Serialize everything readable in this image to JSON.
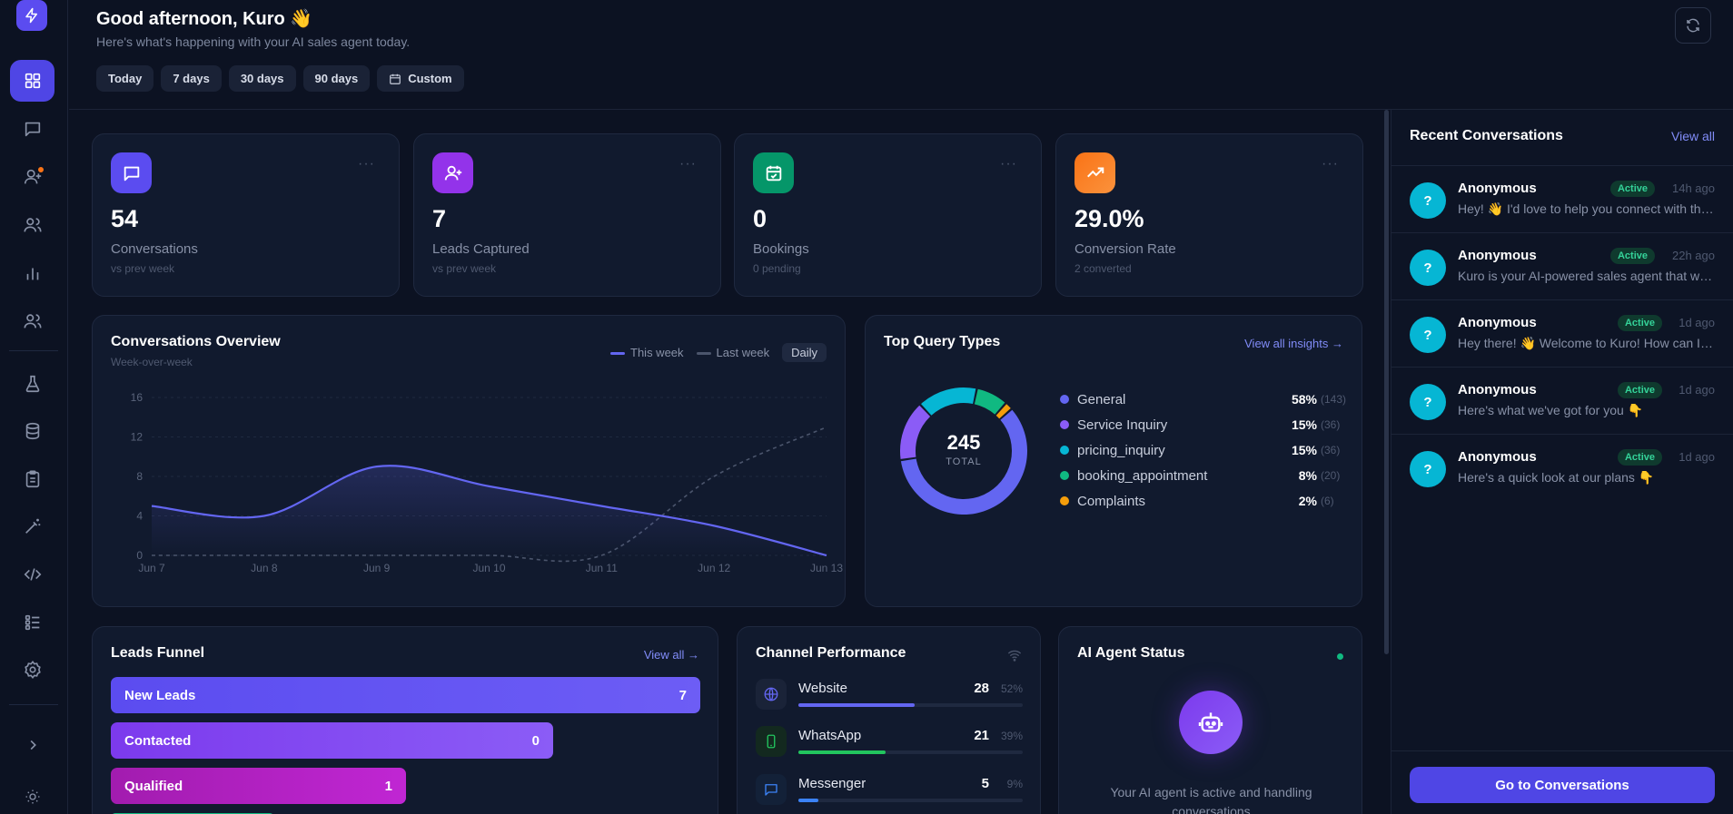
{
  "header": {
    "greeting": "Good afternoon, Kuro",
    "wave": "👋",
    "subtitle": "Here's what's happening with your AI sales agent today.",
    "ranges": [
      "Today",
      "7 days",
      "30 days",
      "90 days",
      "Custom"
    ]
  },
  "sidebar": {
    "items": [
      "dashboard",
      "conversations",
      "add-user",
      "team",
      "analytics",
      "contacts",
      "lab",
      "database",
      "clipboard",
      "magic",
      "code",
      "list",
      "settings",
      "expand",
      "theme"
    ]
  },
  "stats": [
    {
      "value": "54",
      "label": "Conversations",
      "sub": "vs prev week",
      "icon": "message-icon",
      "color": "#5b4cf0"
    },
    {
      "value": "7",
      "label": "Leads Captured",
      "sub": "vs prev week",
      "icon": "user-plus-icon",
      "color": "#9333ea"
    },
    {
      "value": "0",
      "label": "Bookings",
      "sub": "0 pending",
      "icon": "calendar-check-icon",
      "color": "#059669"
    },
    {
      "value": "29.0%",
      "label": "Conversion Rate",
      "sub": "2 converted",
      "icon": "trending-up-icon",
      "color": "#f97316"
    }
  ],
  "overview": {
    "title": "Conversations Overview",
    "subtitle": "Week-over-week",
    "legend_this": "This week",
    "legend_last": "Last week",
    "granularity": "Daily"
  },
  "chart_data": {
    "type": "line",
    "x": [
      "Jun 7",
      "Jun 8",
      "Jun 9",
      "Jun 10",
      "Jun 11",
      "Jun 12",
      "Jun 13"
    ],
    "ylim": [
      0,
      16
    ],
    "yticks": [
      0,
      4,
      8,
      12,
      16
    ],
    "series": [
      {
        "name": "This week",
        "values": [
          5,
          4,
          9,
          7,
          5,
          3,
          0
        ],
        "color": "#6366f1"
      },
      {
        "name": "Last week",
        "values": [
          0,
          0,
          0,
          0,
          0,
          8,
          13
        ],
        "color": "#4b556c"
      }
    ]
  },
  "queries": {
    "title": "Top Query Types",
    "link": "View all insights →",
    "total": "245",
    "total_label": "TOTAL",
    "items": [
      {
        "name": "General",
        "pct": "58%",
        "count": "(143)",
        "color": "#6366f1",
        "value": 58
      },
      {
        "name": "Service Inquiry",
        "pct": "15%",
        "count": "(36)",
        "color": "#8b5cf6",
        "value": 15
      },
      {
        "name": "pricing_inquiry",
        "pct": "15%",
        "count": "(36)",
        "color": "#06b6d4",
        "value": 15
      },
      {
        "name": "booking_appointment",
        "pct": "8%",
        "count": "(20)",
        "color": "#10b981",
        "value": 8
      },
      {
        "name": "Complaints",
        "pct": "2%",
        "count": "(6)",
        "color": "#f59e0b",
        "value": 2
      }
    ]
  },
  "funnel": {
    "title": "Leads Funnel",
    "link": "View all →",
    "stages": [
      {
        "label": "New Leads",
        "value": "7"
      },
      {
        "label": "Contacted",
        "value": "0"
      },
      {
        "label": "Qualified",
        "value": "1"
      }
    ]
  },
  "channels": {
    "title": "Channel Performance",
    "items": [
      {
        "name": "Website",
        "count": "28",
        "pct": "52%",
        "fill": 0.52,
        "color": "#6366f1"
      },
      {
        "name": "WhatsApp",
        "count": "21",
        "pct": "39%",
        "fill": 0.39,
        "color": "#22c55e"
      },
      {
        "name": "Messenger",
        "count": "5",
        "pct": "9%",
        "fill": 0.09,
        "color": "#3b82f6"
      }
    ]
  },
  "agent": {
    "title": "AI Agent Status",
    "message": "Your AI agent is active and handling conversations"
  },
  "recent": {
    "title": "Recent Conversations",
    "link": "View all",
    "button": "Go to Conversations",
    "items": [
      {
        "avatar": "?",
        "name": "Anonymous",
        "badge": "Active",
        "time": "14h ago",
        "message": "Hey! 👋 I'd love to help you connect with the right team"
      },
      {
        "avatar": "?",
        "name": "Anonymous",
        "badge": "Active",
        "time": "22h ago",
        "message": "Kuro is your AI-powered sales agent that works around the clock"
      },
      {
        "avatar": "?",
        "name": "Anonymous",
        "badge": "Active",
        "time": "1d ago",
        "message": "Hey there! 👋 Welcome to Kuro! How can I help you today?"
      },
      {
        "avatar": "?",
        "name": "Anonymous",
        "badge": "Active",
        "time": "1d ago",
        "message": "Here's what we've got for you 👇"
      },
      {
        "avatar": "?",
        "name": "Anonymous",
        "badge": "Active",
        "time": "1d ago",
        "message": "Here's a quick look at our plans 👇"
      }
    ]
  }
}
